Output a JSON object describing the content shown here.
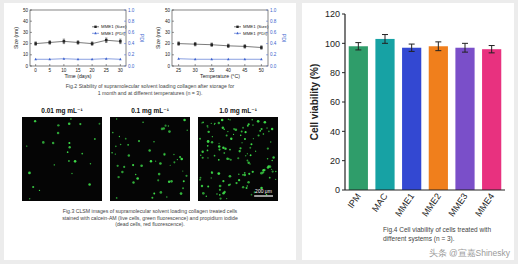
{
  "chart_data": [
    {
      "type": "line",
      "x_label": "Time (days)",
      "y_label": "Size (nm)",
      "y2_label": "PDI",
      "x": [
        0,
        5,
        10,
        15,
        20,
        25,
        30
      ],
      "xlim": [
        -2,
        32
      ],
      "xticks": [
        0,
        5,
        10,
        15,
        20,
        25,
        30
      ],
      "ylim": [
        0,
        50
      ],
      "yticks": [
        0,
        10,
        20,
        30,
        40,
        50
      ],
      "y2lim": [
        0,
        1
      ],
      "y2ticks": [
        {
          "value": 0,
          "label": "0.0"
        },
        {
          "value": 0.2,
          "label": "0.2"
        },
        {
          "value": 0.4,
          "label": "0.4"
        },
        {
          "value": 0.6,
          "label": "0.6"
        },
        {
          "value": 0.8,
          "label": "0.8"
        },
        {
          "value": 1,
          "label": "1.0"
        }
      ],
      "legend": "right",
      "series": [
        {
          "name": "MME1 (Size)",
          "color": "#222222",
          "marker": "square",
          "values": [
            20,
            21,
            22,
            21,
            20,
            23,
            22
          ],
          "errors": [
            1.5,
            1.5,
            2,
            1.5,
            1.5,
            2,
            2
          ]
        },
        {
          "name": "MME1 (PDI)",
          "color": "#3a5fcd",
          "marker": "triangle",
          "axis": "y2",
          "values": [
            0.12,
            0.12,
            0.13,
            0.12,
            0.12,
            0.13,
            0.12
          ]
        }
      ]
    },
    {
      "type": "line",
      "x_label": "Temperature (°C)",
      "y_label": "Size (nm)",
      "y2_label": "PDI",
      "x": [
        25,
        30,
        35,
        40,
        45,
        50
      ],
      "xlim": [
        23,
        52
      ],
      "xticks": [
        25,
        30,
        35,
        40,
        45,
        50
      ],
      "ylim": [
        0,
        50
      ],
      "yticks": [
        0,
        10,
        20,
        30,
        40,
        50
      ],
      "y2lim": [
        0,
        1
      ],
      "y2ticks": [
        {
          "value": 0,
          "label": "0.0"
        },
        {
          "value": 0.2,
          "label": "0.2"
        },
        {
          "value": 0.4,
          "label": "0.4"
        },
        {
          "value": 0.6,
          "label": "0.6"
        },
        {
          "value": 0.8,
          "label": "0.8"
        },
        {
          "value": 1,
          "label": "1.0"
        }
      ],
      "legend": "right",
      "series": [
        {
          "name": "MME1 (Size)",
          "color": "#222222",
          "marker": "square",
          "values": [
            20,
            19.5,
            19,
            18,
            17.5,
            16.5
          ],
          "errors": [
            1.5,
            1.5,
            1.5,
            1.5,
            1.5,
            1.5
          ]
        },
        {
          "name": "MME1 (PDI)",
          "color": "#3a5fcd",
          "marker": "triangle",
          "axis": "y2",
          "values": [
            0.13,
            0.12,
            0.12,
            0.12,
            0.12,
            0.12
          ]
        }
      ]
    },
    {
      "type": "bar",
      "y_label": "Cell viability (%)",
      "categories": [
        "IPM",
        "MAC",
        "MME1",
        "MME2",
        "MME3",
        "MME4"
      ],
      "values": [
        98,
        103,
        97,
        98,
        97,
        96
      ],
      "errors": [
        2.5,
        3,
        2.5,
        3,
        3,
        2.5
      ],
      "colors": [
        "#2f9d6a",
        "#17a2a4",
        "#3348d2",
        "#f07f1c",
        "#7a4fc9",
        "#e8317f"
      ],
      "ylim": [
        0,
        120
      ],
      "yticks": [
        0,
        20,
        40,
        60,
        80,
        100,
        120
      ]
    }
  ],
  "fig2_caption": [
    "Fig.2 Stability of supramolecular solvent loading collagen after storage for",
    "1 month and at different temperatures (n = 3)."
  ],
  "fig3": {
    "panel_labels": [
      "0.01 mg mL⁻¹",
      "0.1 mg mL⁻¹",
      "1.0 mg mL⁻¹"
    ],
    "scale_bar": "200 μm",
    "caption": [
      "Fig.3 CLSM images of supramolecular solvent loading collagen treated cells",
      "stained with calcein-AM (live cells, green fluorescence) and propidium iodide",
      "(dead cells, red fluorescence)."
    ]
  },
  "fig4_caption": [
    "Fig.4 Cell viability of cells treated with",
    "different systems (n = 3)."
  ],
  "watermark": "头条 @宣嘉Shinesky"
}
